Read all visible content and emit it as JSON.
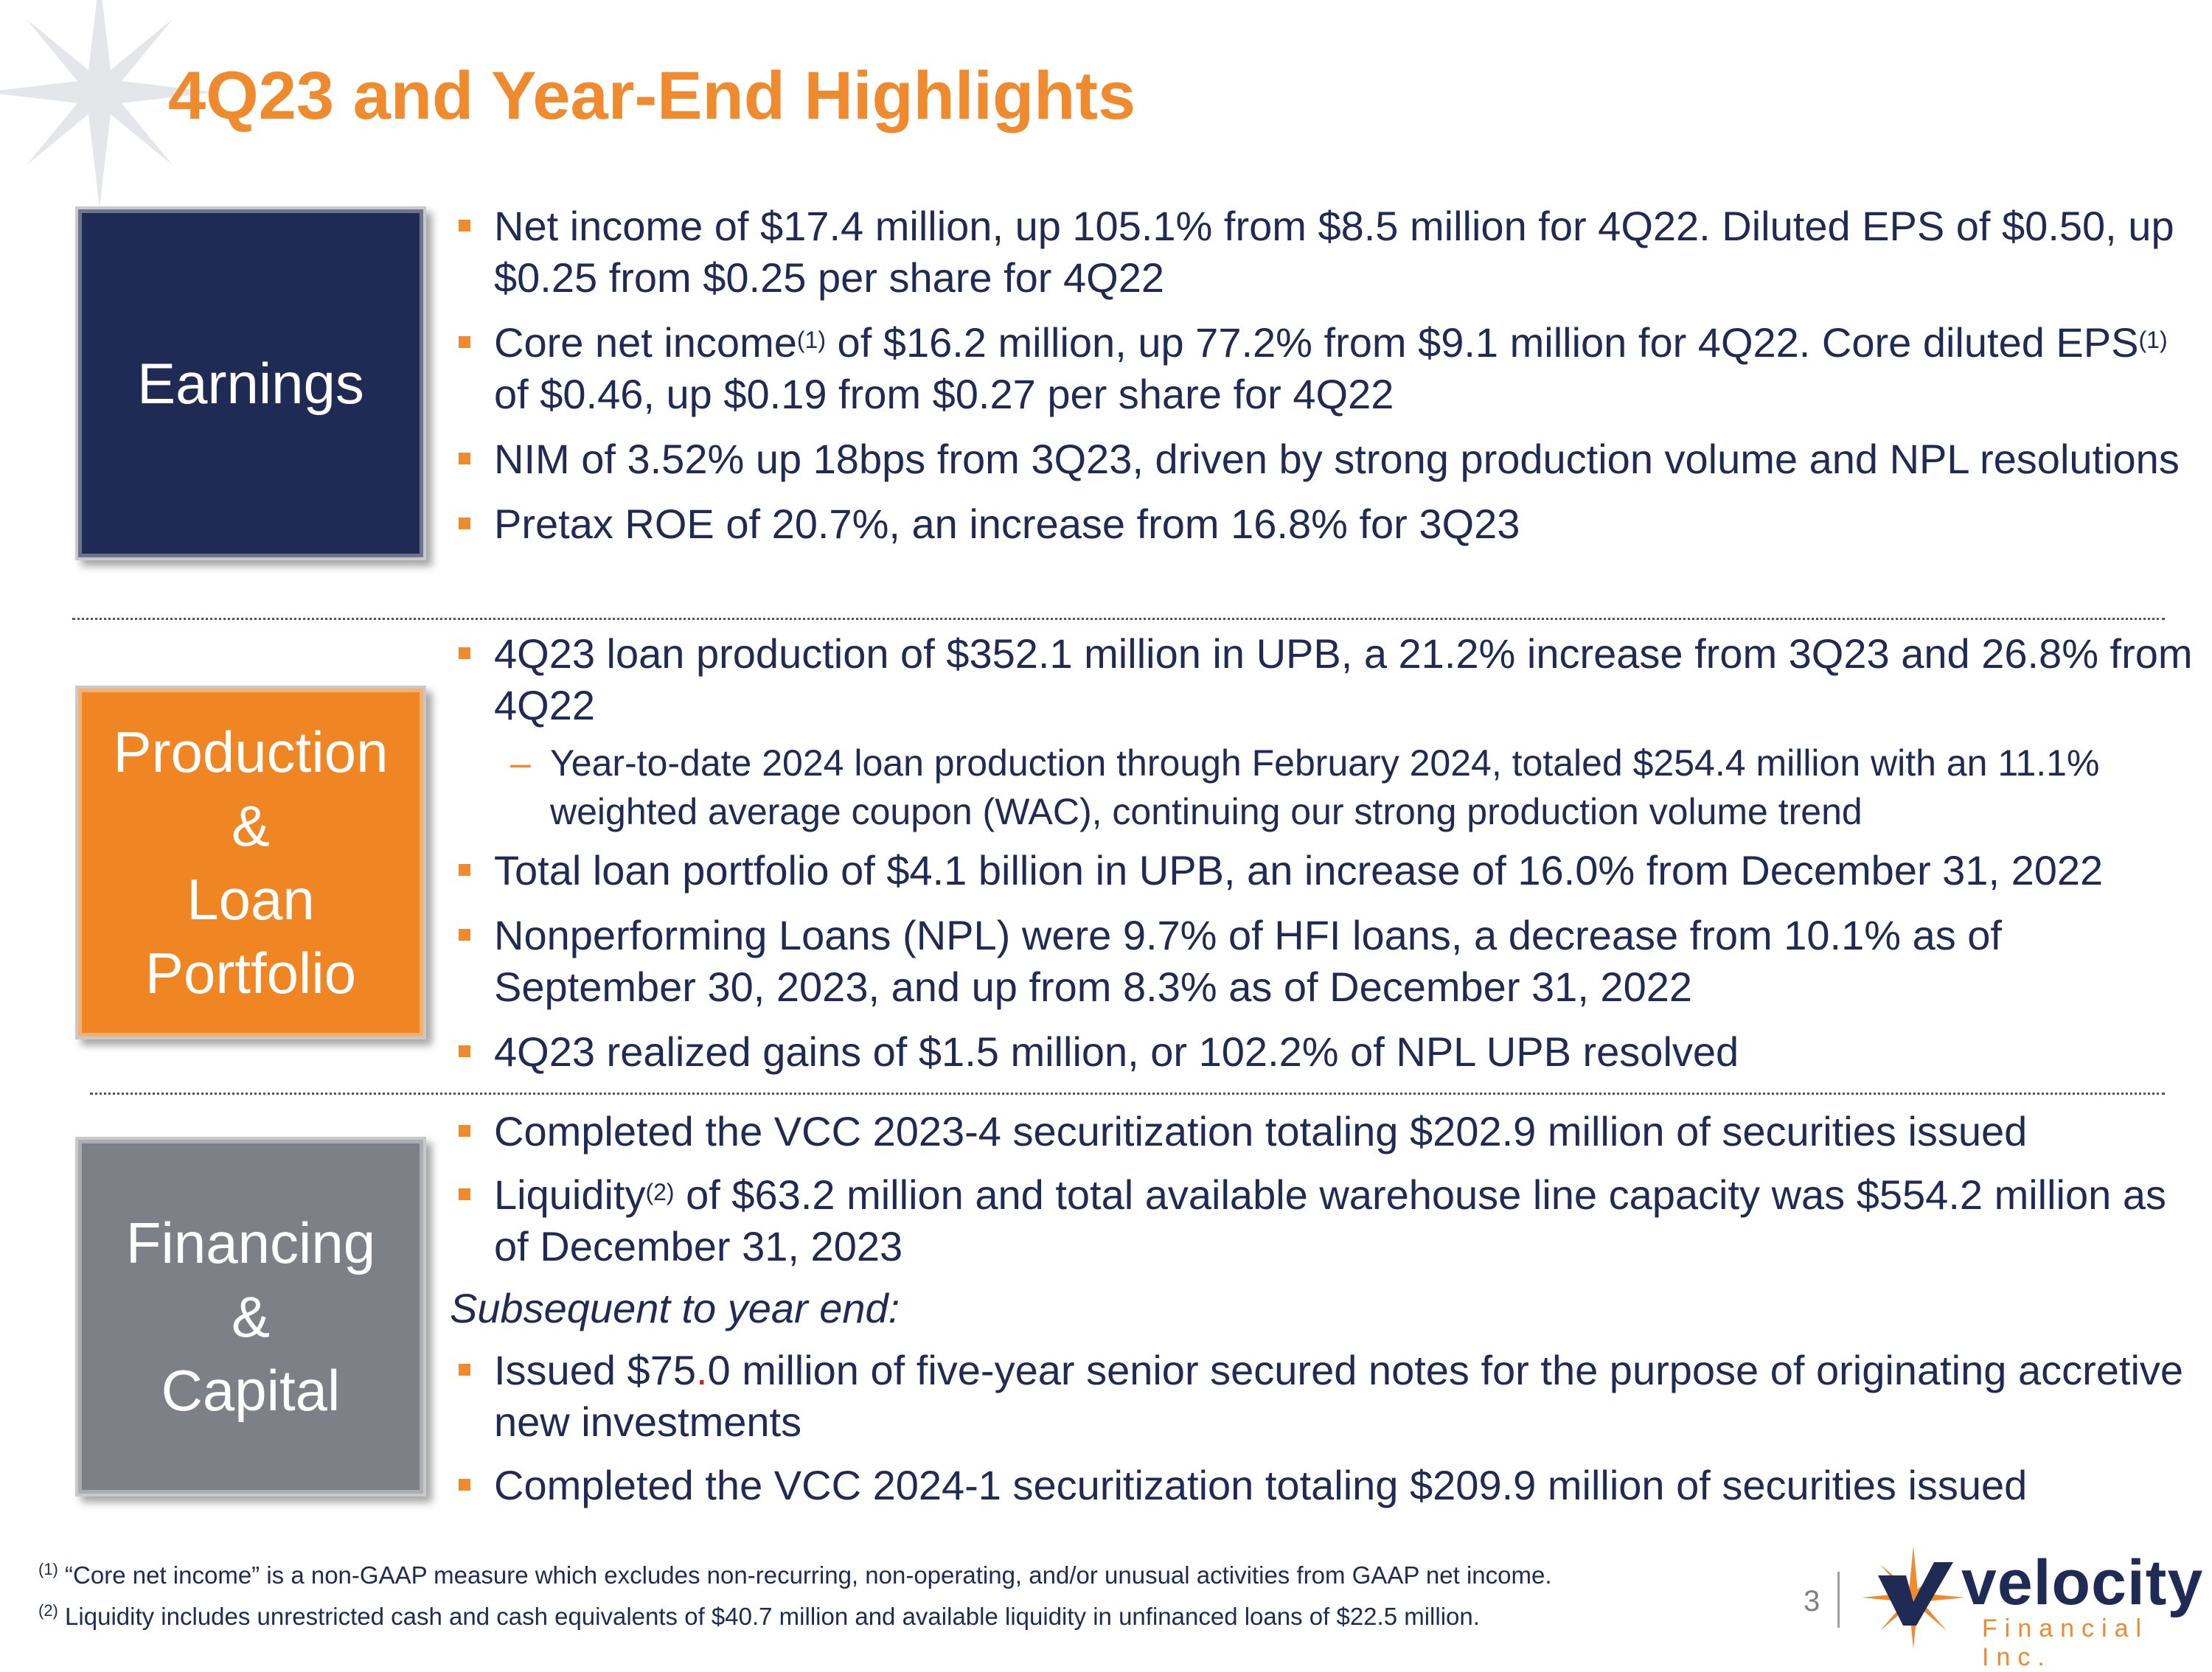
{
  "title": "4Q23 and Year-End Highlights",
  "boxes": {
    "earnings": [
      "Earnings"
    ],
    "production": [
      "Production",
      "&",
      "Loan",
      "Portfolio"
    ],
    "financing": [
      "Financing",
      "&",
      "Capital"
    ]
  },
  "earnings": {
    "b1": "Net income of $17.4 million, up 105.1% from $8.5 million for 4Q22. Diluted EPS of $0.50, up $0.25 from $0.25 per share for 4Q22",
    "b2_a": "Core net income",
    "b2_sup1": "(1)",
    "b2_b": " of $16.2 million, up 77.2% from $9.1 million for 4Q22. Core diluted EPS",
    "b2_sup2": "(1)",
    "b2_c": " of $0.46, up $0.19 from $0.27 per share for 4Q22",
    "b3": "NIM of 3.52% up 18bps from 3Q23, driven by strong production volume and NPL resolutions",
    "b4": "Pretax ROE of 20.7%, an increase from 16.8% for 3Q23"
  },
  "production": {
    "b1": "4Q23 loan production of $352.1 million in UPB, a 21.2% increase from 3Q23 and 26.8% from 4Q22",
    "sub1": "Year-to-date 2024 loan production through February 2024, totaled $254.4 million with an 11.1% weighted average coupon (WAC), continuing our strong production volume trend",
    "b2": "Total loan portfolio of $4.1 billion in UPB, an increase of 16.0% from December 31, 2022",
    "b3": "Nonperforming Loans (NPL) were 9.7% of HFI loans, a decrease from 10.1% as of September 30, 2023, and up from 8.3% as of December 31, 2022",
    "b4": "4Q23 realized gains of $1.5 million, or 102.2% of NPL UPB resolved"
  },
  "financing": {
    "b1": "Completed the VCC 2023-4 securitization totaling $202.9 million of securities issued",
    "b2_a": "Liquidity",
    "b2_sup": "(2)",
    "b2_b": " of $63.2 million and total available warehouse line capacity was $554.2 million as of December 31, 2023",
    "subsequent": "Subsequent to year end:",
    "b3_a": "Issued $75",
    "b3_dot": ".",
    "b3_b": "0 million of five-year senior secured notes for the purpose of originating accretive new investments",
    "b4": "Completed the VCC 2024-1 securitization totaling $209.9 million of securities issued"
  },
  "footnotes": {
    "n1_mark": "(1)",
    "n1": " “Core net income” is a non-GAAP measure which excludes non-recurring, non-operating, and/or unusual activities from GAAP net income.",
    "n2_mark": "(2)",
    "n2": " Liquidity includes unrestricted cash and cash equivalents of $40.7 million and available liquidity in unfinanced loans of $22.5 million."
  },
  "page_number": "3",
  "logo": {
    "word": "velocity",
    "sub": "Financial Inc."
  },
  "colors": {
    "navy": "#1f2a55",
    "orange": "#ef8a2e",
    "gray": "#7d8187"
  }
}
